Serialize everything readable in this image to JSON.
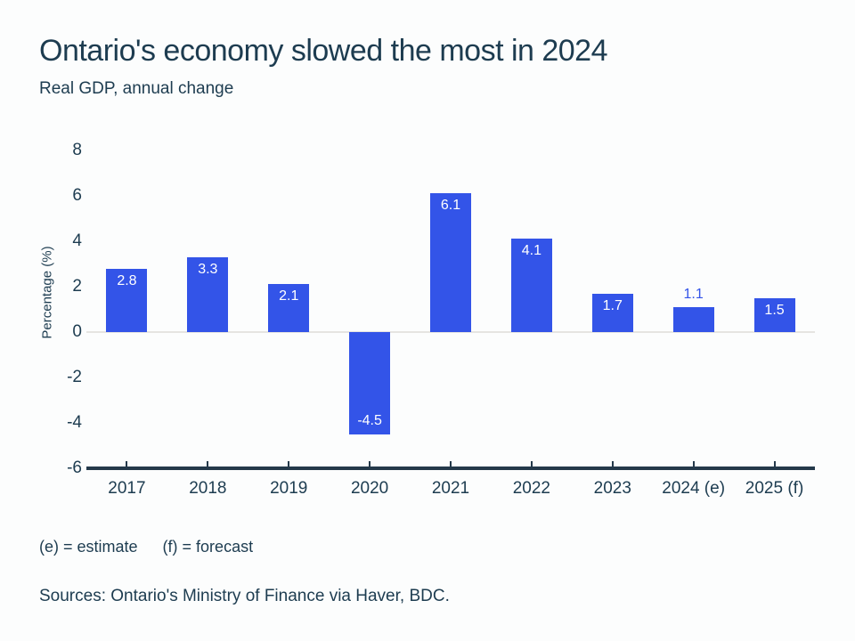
{
  "header": {
    "title": "Ontario's economy slowed the most in 2024",
    "subtitle": "Real GDP, annual change"
  },
  "chart_data": {
    "type": "bar",
    "title": "Ontario's economy slowed the most in 2024",
    "subtitle": "Real GDP, annual change",
    "categories": [
      "2017",
      "2018",
      "2019",
      "2020",
      "2021",
      "2022",
      "2023",
      "2024 (e)",
      "2025 (f)"
    ],
    "values": [
      2.8,
      3.3,
      2.1,
      -4.5,
      6.1,
      4.1,
      1.7,
      1.1,
      1.5
    ],
    "bar_labels": [
      "2.8",
      "3.3",
      "2.1",
      "-4.5",
      "6.1",
      "4.1",
      "1.7",
      "1.1",
      "1.5"
    ],
    "xlabel": "",
    "ylabel": "Percentage (%)",
    "yticks": [
      8,
      6,
      4,
      2,
      0,
      -2,
      -4,
      -6
    ],
    "ylim": [
      -6,
      8
    ],
    "grid": "zero-line-only",
    "legend": "none",
    "bar_color": "#3354e8"
  },
  "footer": {
    "note_estimate": "(e) = estimate",
    "note_forecast": "(f) = forecast",
    "source": "Sources: Ontario's Ministry of Finance via Haver, BDC."
  },
  "colors": {
    "background": "#fcfdfd",
    "text": "#1d3c50",
    "bar": "#3354e8",
    "bar_label_on_bar": "#ffffff",
    "bar_label_above": "#3354e8",
    "axis_line": "#24394a",
    "zero_line": "#e6e4e1"
  }
}
